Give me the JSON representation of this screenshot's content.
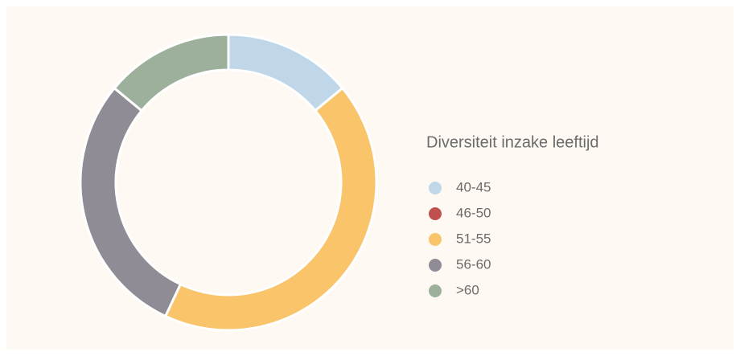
{
  "chart_data": {
    "type": "donut",
    "title": "Diversiteit inzake leeftijd",
    "categories": [
      "40-45",
      "46-50",
      "51-55",
      "56-60",
      ">60"
    ],
    "values": [
      14,
      0,
      43,
      29,
      14
    ],
    "colors": [
      "#bfd7e8",
      "#c0504d",
      "#f9c46a",
      "#8f8c95",
      "#9cb09c"
    ],
    "legend": "right"
  }
}
